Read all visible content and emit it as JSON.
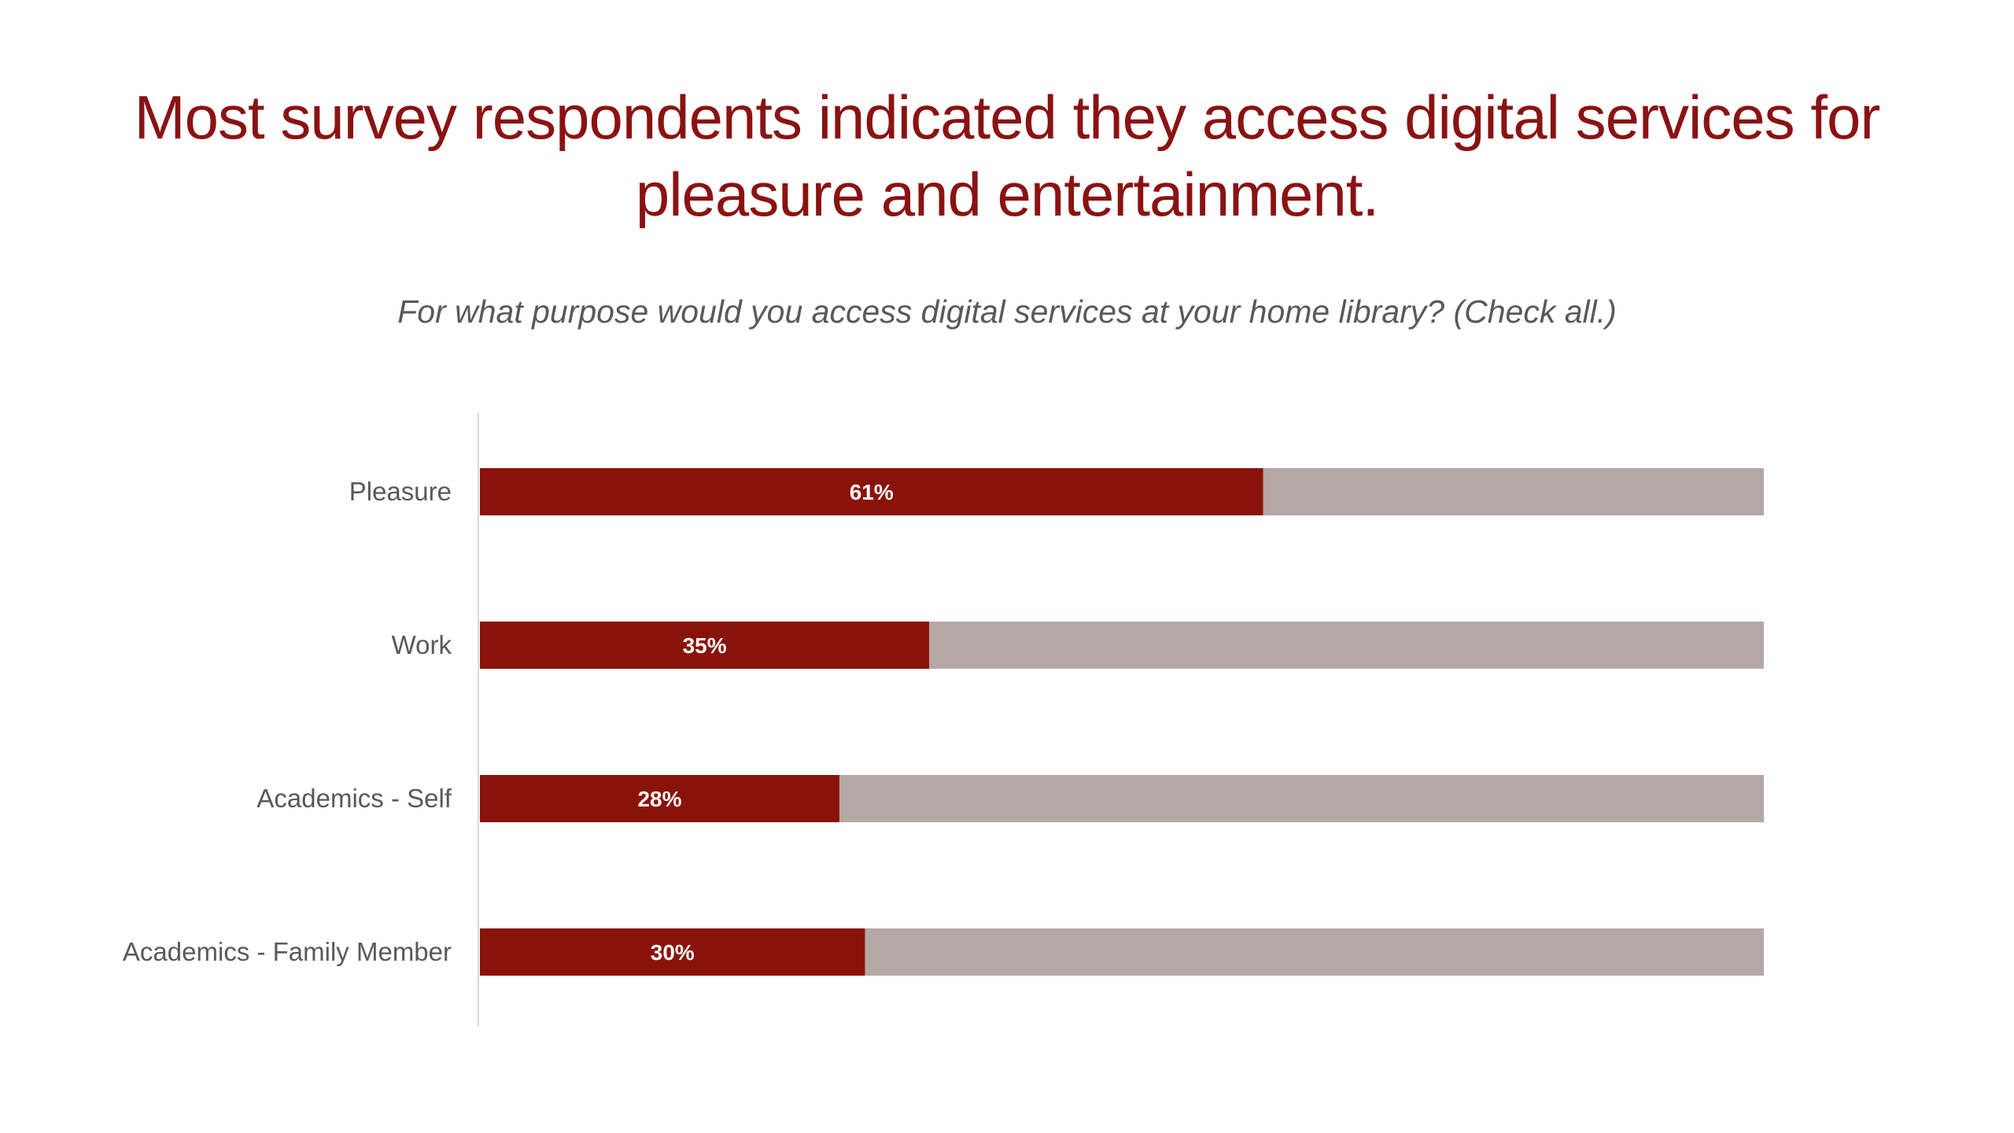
{
  "slide": {
    "title": "Most survey respondents indicated they access digital services for pleasure and entertainment.",
    "subtitle": "For what purpose would you access digital services at your home library? (Check all.)"
  },
  "chart_data": {
    "type": "bar",
    "orientation": "horizontal",
    "stacked_to_total": true,
    "categories": [
      "Pleasure",
      "Work",
      "Academics - Self",
      "Academics - Family Member"
    ],
    "series": [
      {
        "values": [
          61,
          35,
          28,
          30
        ],
        "color": "#8a1309"
      },
      {
        "values": [
          39,
          65,
          72,
          70
        ],
        "color": "#b5a7a4"
      }
    ],
    "data_labels": [
      "61%",
      "35%",
      "28%",
      "30%"
    ],
    "xlim": [
      0,
      100
    ],
    "grid": false,
    "legend": "none"
  },
  "colors": {
    "title": "#8a1212",
    "subtitle": "#595959",
    "bar_primary": "#8a1309",
    "bar_remainder": "#b5a7a4",
    "axis_line": "#d9d9d9",
    "label_text": "#595959"
  }
}
